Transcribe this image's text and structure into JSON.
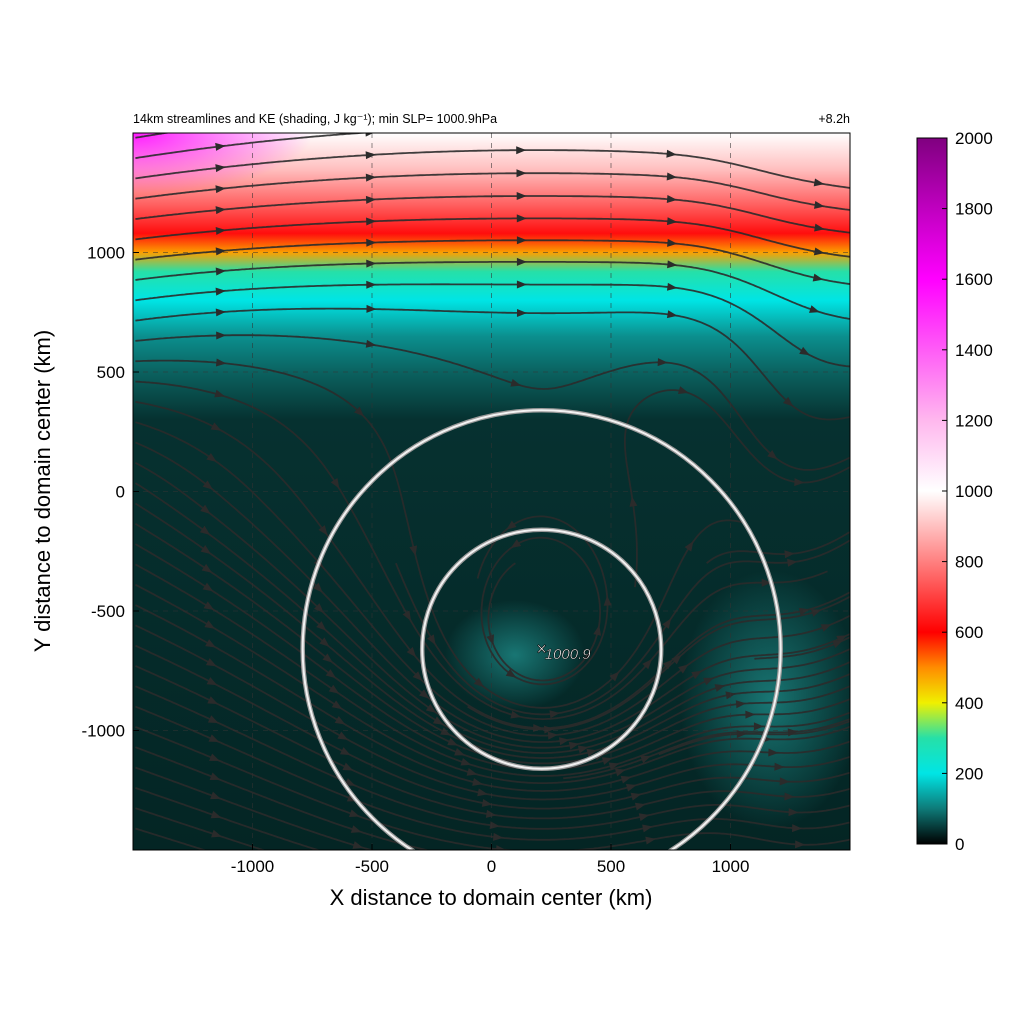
{
  "chart_data": {
    "type": "heatmap",
    "title": "14km streamlines and KE (shading, J kg⁻¹); min SLP= 1000.9hPa",
    "time_label": "+8.2h",
    "xlabel": "X distance to domain center (km)",
    "ylabel": "Y distance to domain center (km)",
    "xlim": [
      -1500,
      1500
    ],
    "ylim": [
      -1500,
      1500
    ],
    "x_ticks": [
      -1000,
      -500,
      0,
      500,
      1000
    ],
    "y_ticks": [
      -1000,
      -500,
      0,
      500,
      1000
    ],
    "x_tick_labels": [
      "-1000",
      "-500",
      "0",
      "500",
      "1000"
    ],
    "y_tick_labels": [
      "-1000",
      "-500",
      "0",
      "500",
      "1000"
    ],
    "grid": true,
    "colorbar": {
      "min": 0,
      "max": 2000,
      "ticks": [
        0,
        200,
        400,
        600,
        800,
        1000,
        1200,
        1400,
        1600,
        1800,
        2000
      ],
      "tick_labels": [
        "0",
        "200",
        "400",
        "600",
        "800",
        "1000",
        "1200",
        "1400",
        "1600",
        "1800",
        "2000"
      ],
      "stops": [
        {
          "value": 0,
          "color": "#000000"
        },
        {
          "value": 100,
          "color": "#0e7a78"
        },
        {
          "value": 200,
          "color": "#00e5e5"
        },
        {
          "value": 300,
          "color": "#26e0a8"
        },
        {
          "value": 400,
          "color": "#f0f000"
        },
        {
          "value": 500,
          "color": "#ff8c00"
        },
        {
          "value": 600,
          "color": "#ff0000"
        },
        {
          "value": 800,
          "color": "#ff8080"
        },
        {
          "value": 1000,
          "color": "#ffffff"
        },
        {
          "value": 1200,
          "color": "#ffb8ee"
        },
        {
          "value": 1600,
          "color": "#ff00ff"
        },
        {
          "value": 2000,
          "color": "#800080"
        }
      ]
    },
    "field_bands": [
      {
        "y": 1500,
        "ke": 1000
      },
      {
        "y": 1350,
        "ke": 900
      },
      {
        "y": 1200,
        "ke": 750
      },
      {
        "y": 1080,
        "ke": 620
      },
      {
        "y": 1000,
        "ke": 480
      },
      {
        "y": 920,
        "ke": 300
      },
      {
        "y": 800,
        "ke": 200
      },
      {
        "y": 650,
        "ke": 120
      },
      {
        "y": 500,
        "ke": 80
      },
      {
        "y": 300,
        "ke": 40
      },
      {
        "y": -1500,
        "ke": 30
      }
    ],
    "storm_center": {
      "x": 210,
      "y": -660,
      "label": "1000.9"
    },
    "range_rings_km": [
      500,
      1000
    ]
  }
}
